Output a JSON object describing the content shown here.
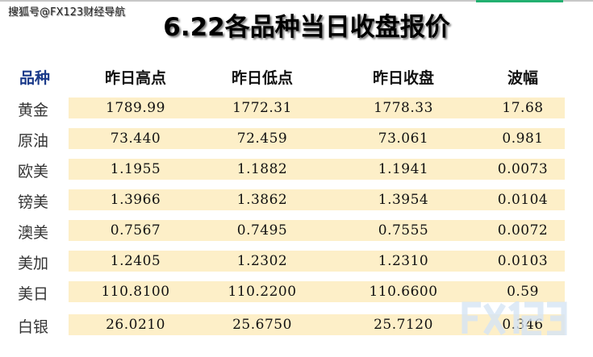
{
  "watermark_text": "搜狐号@FX123财经导航",
  "title": "6.22各品种当日收盘报价",
  "headers": [
    "品种",
    "昨日高点",
    "昨日低点",
    "昨日收盘",
    "波幅"
  ],
  "rows": [
    {
      "name": "黄金",
      "high": "1789.99",
      "low": "1772.31",
      "close": "1778.33",
      "range": "17.68"
    },
    {
      "name": "原油",
      "high": "73.440",
      "low": "72.459",
      "close": "73.061",
      "range": "0.981"
    },
    {
      "name": "欧美",
      "high": "1.1955",
      "low": "1.1882",
      "close": "1.1941",
      "range": "0.0073"
    },
    {
      "name": "镑美",
      "high": "1.3966",
      "low": "1.3862",
      "close": "1.3954",
      "range": "0.0104"
    },
    {
      "name": "澳美",
      "high": "0.7567",
      "low": "0.7495",
      "close": "0.7555",
      "range": "0.0072"
    },
    {
      "name": "美加",
      "high": "1.2405",
      "low": "1.2302",
      "close": "1.2310",
      "range": "0.0103"
    },
    {
      "name": "美日",
      "high": "110.8100",
      "low": "110.2200",
      "close": "110.6600",
      "range": "0.59"
    },
    {
      "name": "白银",
      "high": "26.0210",
      "low": "25.6750",
      "close": "25.7120",
      "range": "0.346"
    }
  ],
  "logo_text": "FX123",
  "colors": {
    "row_bg": "#fdefc8",
    "header_first": "#1a3a8a",
    "accent": "#22b070"
  }
}
